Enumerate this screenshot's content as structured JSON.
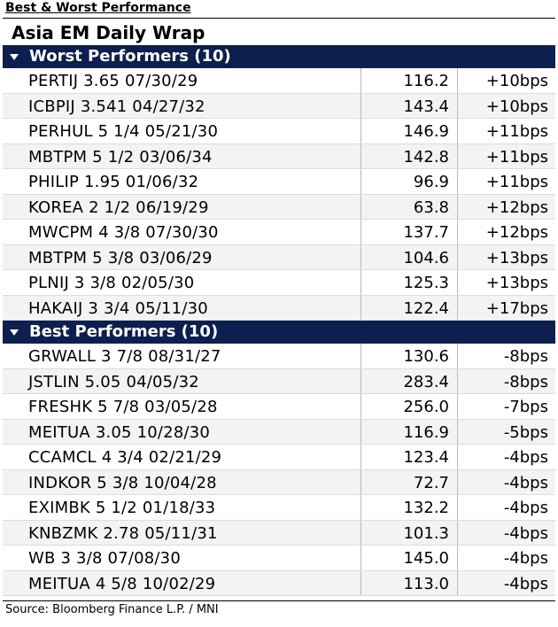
{
  "page_title": "Best & Worst Performance",
  "wrap_title": "Asia EM Daily Wrap",
  "worst": {
    "header": "Worst Performers (10)",
    "rows": [
      {
        "bond": "PERTIJ 3.65 07/30/29",
        "price": "116.2",
        "change": "+10bps"
      },
      {
        "bond": "ICBPIJ 3.541 04/27/32",
        "price": "143.4",
        "change": "+10bps"
      },
      {
        "bond": "PERHUL 5 1/4 05/21/30",
        "price": "146.9",
        "change": "+11bps"
      },
      {
        "bond": "MBTPM 5 1/2 03/06/34",
        "price": "142.8",
        "change": "+11bps"
      },
      {
        "bond": "PHILIP 1.95 01/06/32",
        "price": "96.9",
        "change": "+11bps"
      },
      {
        "bond": "KOREA 2 1/2 06/19/29",
        "price": "63.8",
        "change": "+12bps"
      },
      {
        "bond": "MWCPM 4 3/8 07/30/30",
        "price": "137.7",
        "change": "+12bps"
      },
      {
        "bond": "MBTPM 5 3/8 03/06/29",
        "price": "104.6",
        "change": "+13bps"
      },
      {
        "bond": "PLNIJ 3 3/8 02/05/30",
        "price": "125.3",
        "change": "+13bps"
      },
      {
        "bond": "HAKAIJ 3 3/4 05/11/30",
        "price": "122.4",
        "change": "+17bps"
      }
    ]
  },
  "best": {
    "header": "Best Performers (10)",
    "rows": [
      {
        "bond": "GRWALL 3 7/8 08/31/27",
        "price": "130.6",
        "change": "-8bps"
      },
      {
        "bond": "JSTLIN 5.05 04/05/32",
        "price": "283.4",
        "change": "-8bps"
      },
      {
        "bond": "FRESHK 5 7/8 03/05/28",
        "price": "256.0",
        "change": "-7bps"
      },
      {
        "bond": "MEITUA 3.05 10/28/30",
        "price": "116.9",
        "change": "-5bps"
      },
      {
        "bond": "CCAMCL 4 3/4 02/21/29",
        "price": "123.4",
        "change": "-4bps"
      },
      {
        "bond": "INDKOR 5 3/8 10/04/28",
        "price": "72.7",
        "change": "-4bps"
      },
      {
        "bond": "EXIMBK 5 1/2 01/18/33",
        "price": "132.2",
        "change": "-4bps"
      },
      {
        "bond": "KNBZMK 2.78 05/11/31",
        "price": "101.3",
        "change": "-4bps"
      },
      {
        "bond": "WB 3 3/8 07/08/30",
        "price": "145.0",
        "change": "-4bps"
      },
      {
        "bond": "MEITUA 4 5/8 10/02/29",
        "price": "113.0",
        "change": "-4bps"
      }
    ]
  },
  "source": "Source: Bloomberg Finance L.P. / MNI",
  "colors": {
    "header_bg": "#0d1f4f",
    "header_text": "#ffffff",
    "row_alt": "#f3f3f3"
  },
  "icons": {
    "section_marker": "triangle-down-icon"
  }
}
